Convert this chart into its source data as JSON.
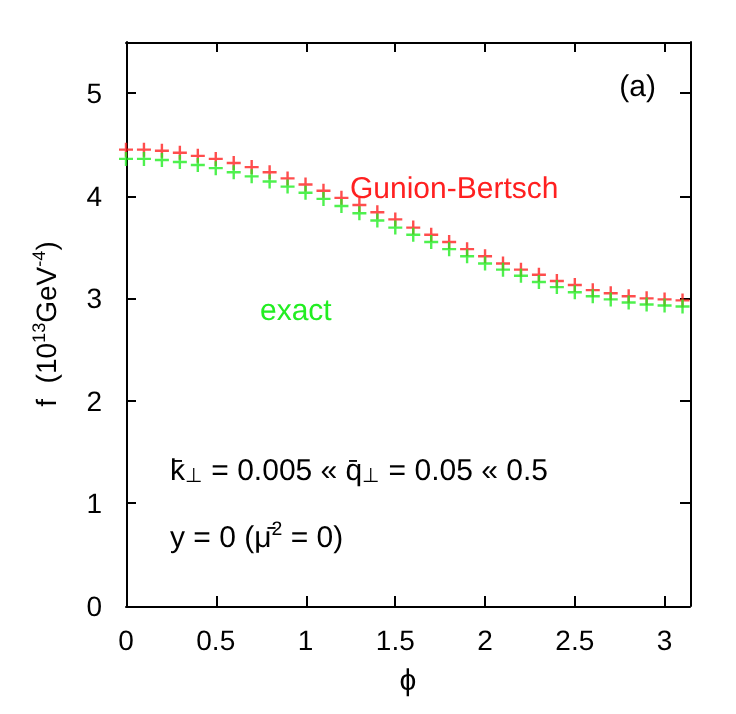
{
  "chart_data": {
    "type": "scatter",
    "xlabel": "ϕ",
    "ylabel": "f  (10$^{13}$GeV$^{-4}$)",
    "x": [
      0,
      0.1,
      0.2,
      0.3,
      0.4,
      0.5,
      0.6,
      0.7,
      0.8,
      0.9,
      1.0,
      1.1,
      1.2,
      1.3,
      1.4,
      1.5,
      1.6,
      1.7,
      1.8,
      1.9,
      2.0,
      2.1,
      2.2,
      2.3,
      2.4,
      2.5,
      2.6,
      2.7,
      2.8,
      2.9,
      3.0,
      3.1
    ],
    "series": [
      {
        "name": "Gunion-Bertsch",
        "color": "#ff2020",
        "marker": "cross",
        "values": [
          4.45,
          4.45,
          4.44,
          4.42,
          4.39,
          4.36,
          4.32,
          4.28,
          4.23,
          4.17,
          4.11,
          4.05,
          3.98,
          3.91,
          3.84,
          3.77,
          3.69,
          3.62,
          3.55,
          3.48,
          3.41,
          3.34,
          3.28,
          3.23,
          3.17,
          3.13,
          3.08,
          3.05,
          3.02,
          3.0,
          2.99,
          2.98
        ]
      },
      {
        "name": "exact",
        "color": "#22ee22",
        "marker": "cross",
        "values": [
          4.36,
          4.36,
          4.35,
          4.33,
          4.3,
          4.27,
          4.23,
          4.19,
          4.14,
          4.09,
          4.03,
          3.97,
          3.9,
          3.83,
          3.76,
          3.69,
          3.62,
          3.55,
          3.48,
          3.41,
          3.34,
          3.28,
          3.22,
          3.16,
          3.11,
          3.06,
          3.02,
          2.99,
          2.96,
          2.94,
          2.93,
          2.92
        ]
      }
    ],
    "xlim": [
      0,
      3.1416
    ],
    "xticks": [
      0,
      0.5,
      1,
      1.5,
      2,
      2.5,
      3
    ],
    "ylim": [
      0,
      5.5
    ],
    "yticks": [
      0,
      1,
      2,
      3,
      4,
      5
    ],
    "grid": false,
    "legend": false,
    "annotations": [
      "(a)",
      "k̄$_{⊥}$ = 0.005 « q̄$_{⊥}$ = 0.05 « 0.5",
      "y = 0 (μ̄$^{2}$ = 0)"
    ]
  }
}
